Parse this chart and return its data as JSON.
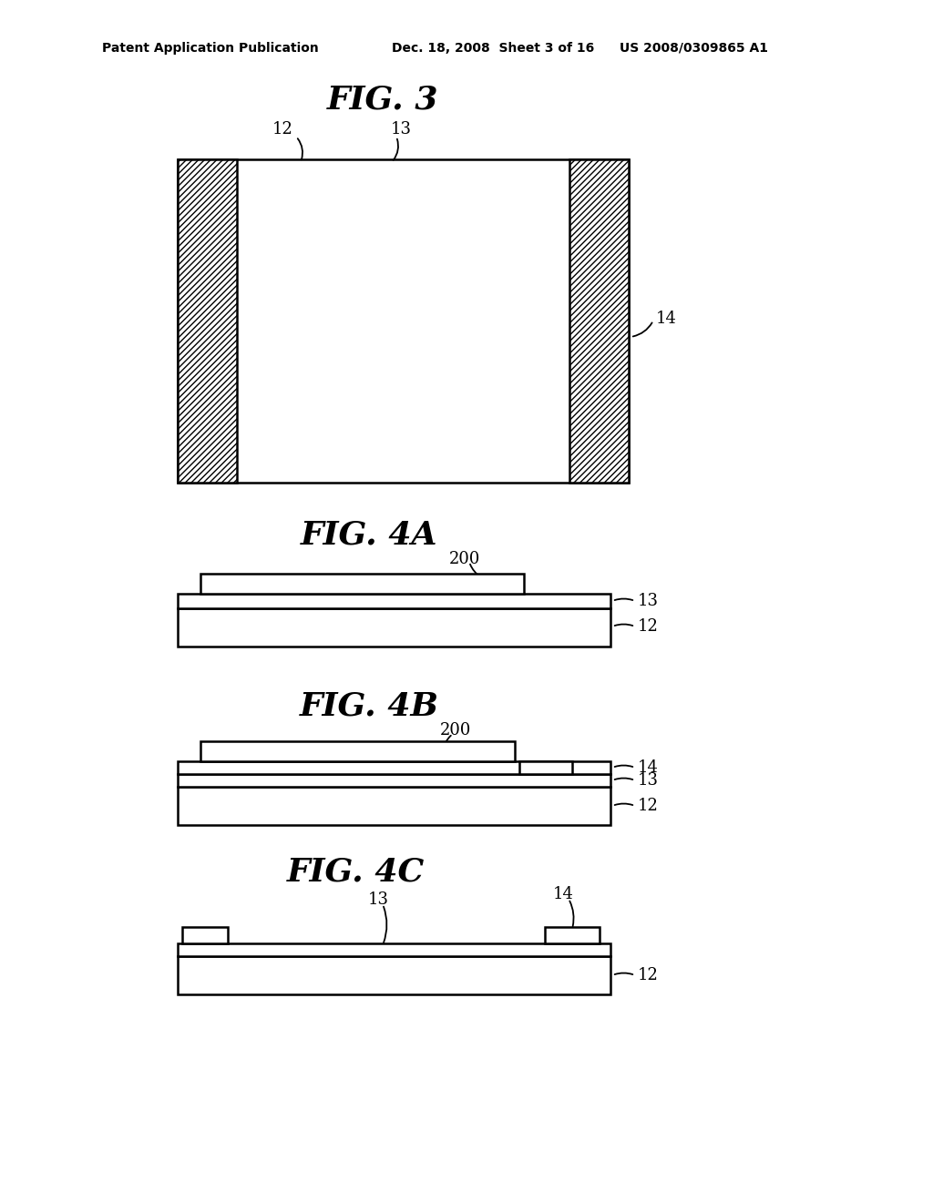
{
  "bg_color": "#ffffff",
  "line_color": "#000000",
  "header_left": "Patent Application Publication",
  "header_mid": "Dec. 18, 2008  Sheet 3 of 16",
  "header_right": "US 2008/0309865 A1",
  "fig3_title": "FIG. 3",
  "fig4a_title": "FIG. 4A",
  "fig4b_title": "FIG. 4B",
  "fig4c_title": "FIG. 4C",
  "label_12": "12",
  "label_13": "13",
  "label_14": "14",
  "label_200": "200"
}
